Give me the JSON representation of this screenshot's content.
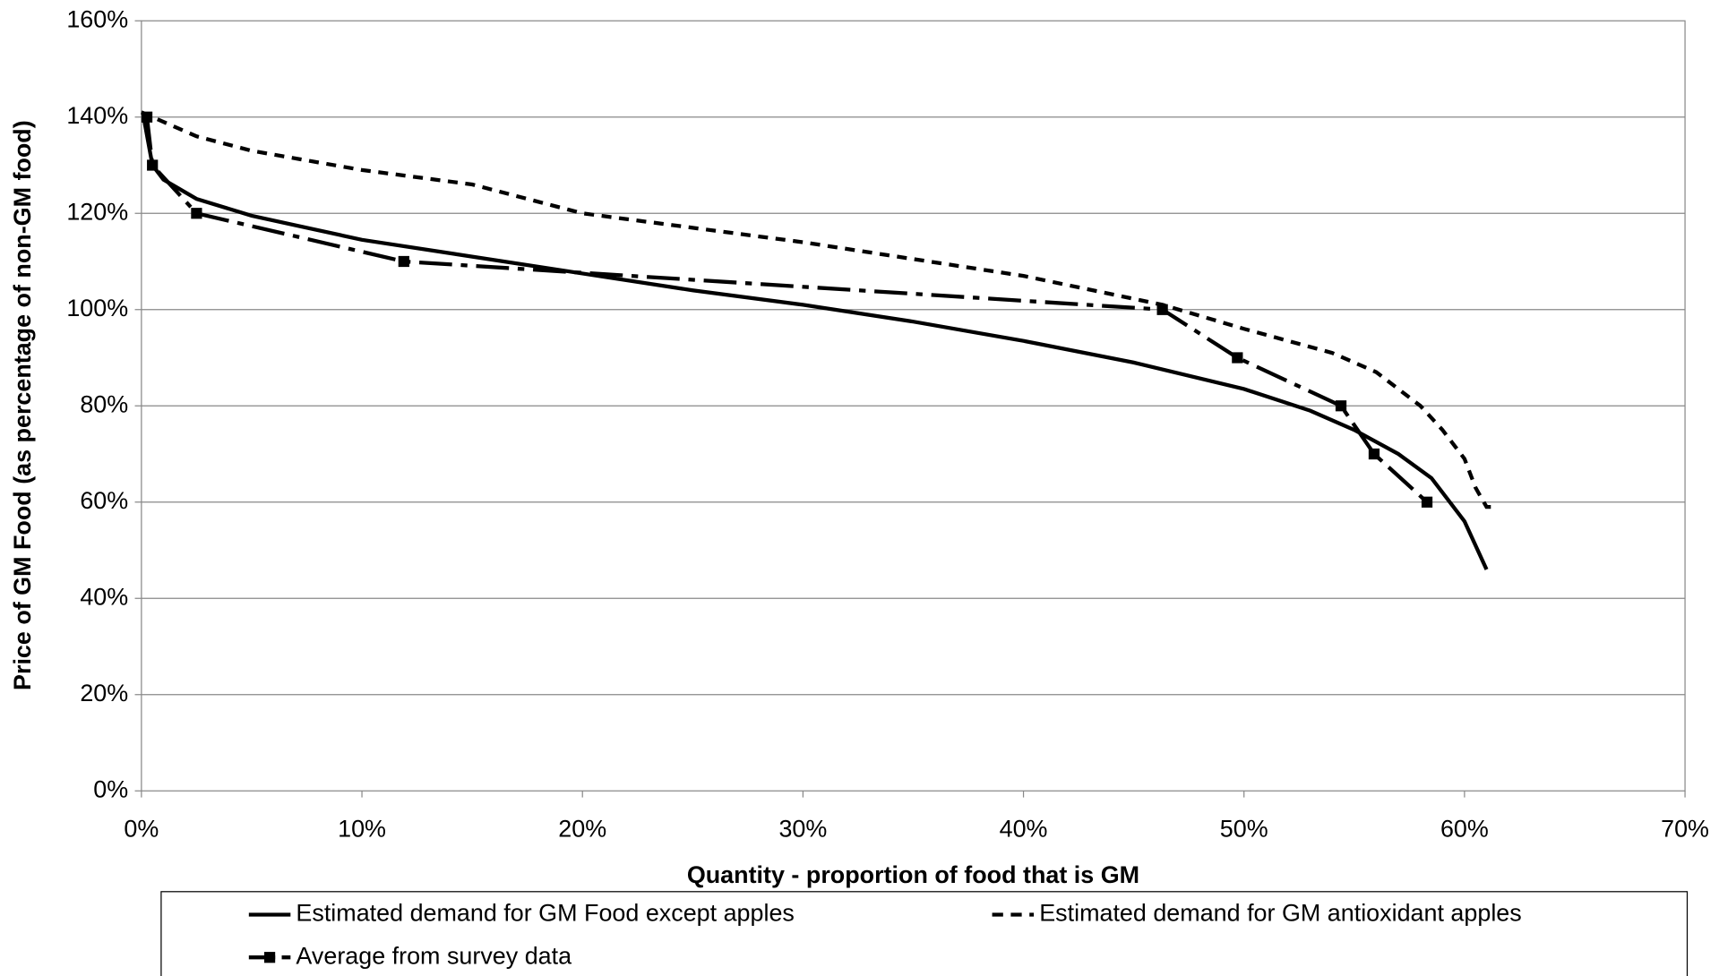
{
  "chart_data": {
    "type": "line",
    "xlabel": "Quantity - proportion of food that is GM",
    "ylabel": "Price of GM Food (as percentage of non-GM food)",
    "xlim": [
      0,
      70
    ],
    "ylim": [
      0,
      160
    ],
    "xticks": [
      {
        "value": 0,
        "label": "0%"
      },
      {
        "value": 10,
        "label": "10%"
      },
      {
        "value": 20,
        "label": "20%"
      },
      {
        "value": 30,
        "label": "30%"
      },
      {
        "value": 40,
        "label": "40%"
      },
      {
        "value": 50,
        "label": "50%"
      },
      {
        "value": 60,
        "label": "60%"
      },
      {
        "value": 70,
        "label": "70%"
      }
    ],
    "yticks": [
      {
        "value": 0,
        "label": "0%"
      },
      {
        "value": 20,
        "label": "20%"
      },
      {
        "value": 40,
        "label": "40%"
      },
      {
        "value": 60,
        "label": "60%"
      },
      {
        "value": 80,
        "label": "80%"
      },
      {
        "value": 100,
        "label": "100%"
      },
      {
        "value": 120,
        "label": "120%"
      },
      {
        "value": 140,
        "label": "140%"
      },
      {
        "value": 160,
        "label": "160%"
      }
    ],
    "grid": true,
    "series": [
      {
        "name": "Estimated demand for GM Food except apples",
        "color": "#000000",
        "dash": "solid",
        "marker": "none",
        "x": [
          0.1,
          0.5,
          1,
          2.5,
          5,
          10,
          15,
          20,
          25,
          30,
          35,
          40,
          45,
          50,
          53,
          55,
          57,
          58.5,
          60,
          61
        ],
        "values": [
          140,
          130,
          127,
          123,
          119.5,
          114.5,
          111,
          107.5,
          104,
          101,
          97.5,
          93.5,
          89,
          83.5,
          79,
          75,
          70,
          65,
          56,
          46
        ]
      },
      {
        "name": "Estimated demand for GM antioxidant apples",
        "color": "#000000",
        "dash": "dotted",
        "marker": "none",
        "x": [
          0,
          2.5,
          5,
          10,
          15,
          20,
          30,
          40,
          46.3,
          50,
          54,
          56,
          58,
          59,
          60,
          60.5,
          61,
          61.3
        ],
        "values": [
          141,
          136,
          133,
          129,
          126,
          120,
          114,
          107,
          101,
          96,
          91,
          87,
          80,
          75,
          69,
          63,
          59,
          59
        ]
      },
      {
        "name": "Average from survey data",
        "color": "#000000",
        "dash": "dashdot",
        "marker": "square",
        "x": [
          0.25,
          0.5,
          2.5,
          11.9,
          46.3,
          49.7,
          54.4,
          55.9,
          58.3
        ],
        "values": [
          140,
          130,
          120,
          110,
          100,
          90,
          80,
          70,
          60
        ]
      }
    ]
  }
}
